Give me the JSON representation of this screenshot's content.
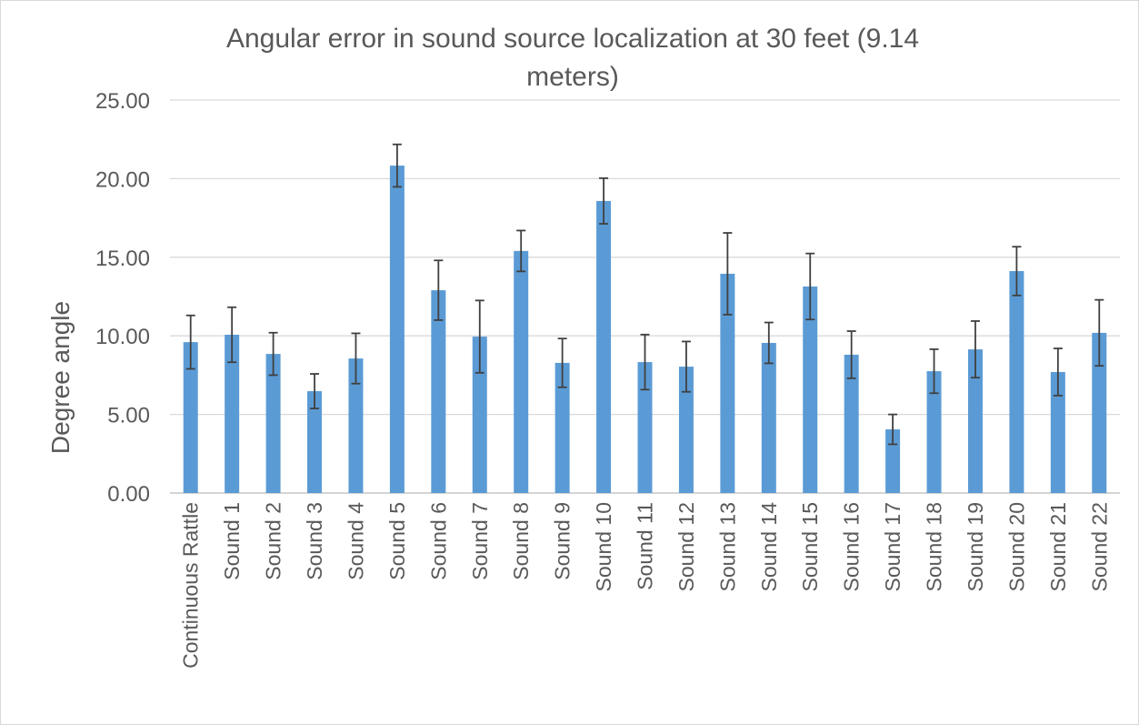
{
  "chart_data": {
    "type": "bar",
    "title": "Angular error in sound source localization at 30 feet (9.14 meters)",
    "y_label": "Degree angle",
    "categories": [
      "Continuous Rattle",
      "Sound 1",
      "Sound 2",
      "Sound 3",
      "Sound 4",
      "Sound 5",
      "Sound 6",
      "Sound 7",
      "Sound 8",
      "Sound 9",
      "Sound 10",
      "Sound 11",
      "Sound 12",
      "Sound 13",
      "Sound 14",
      "Sound 15",
      "Sound 16",
      "Sound 17",
      "Sound 18",
      "Sound 19",
      "Sound 20",
      "Sound 21",
      "Sound 22"
    ],
    "values": [
      9.6,
      10.07,
      8.85,
      6.48,
      8.56,
      20.83,
      12.9,
      9.95,
      15.4,
      8.28,
      18.58,
      8.33,
      8.04,
      13.95,
      9.55,
      13.14,
      8.8,
      4.05,
      7.75,
      9.14,
      14.12,
      7.7,
      10.19
    ],
    "errors": [
      1.7,
      1.75,
      1.35,
      1.1,
      1.6,
      1.35,
      1.9,
      2.3,
      1.3,
      1.55,
      1.45,
      1.75,
      1.6,
      2.6,
      1.3,
      2.1,
      1.5,
      0.95,
      1.4,
      1.8,
      1.55,
      1.5,
      2.1
    ],
    "color": "#5b9bd5",
    "ylim": [
      0,
      25
    ],
    "yticks": [
      {
        "value": 0,
        "label": "0.00"
      },
      {
        "value": 5,
        "label": "5.00"
      },
      {
        "value": 10,
        "label": "10.00"
      },
      {
        "value": 15,
        "label": "15.00"
      },
      {
        "value": 20,
        "label": "20.00"
      },
      {
        "value": 25,
        "label": "25.00"
      }
    ],
    "grid": true
  }
}
